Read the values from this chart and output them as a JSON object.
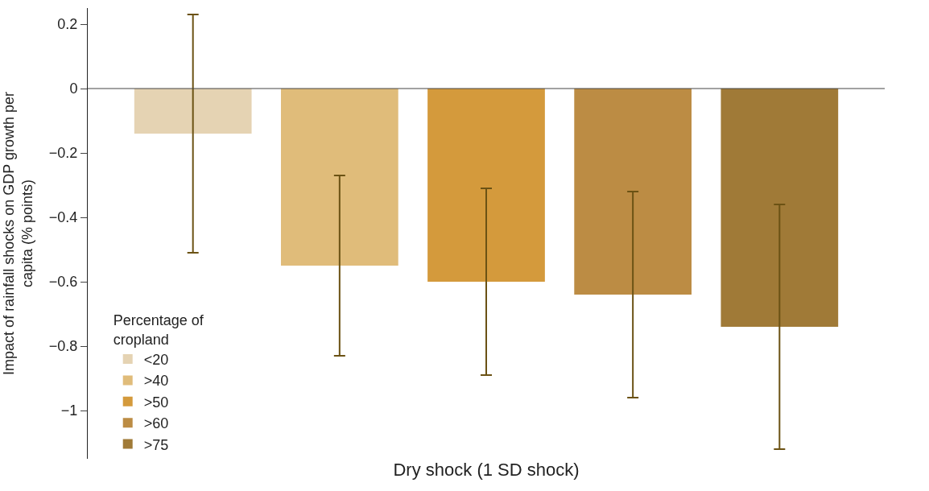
{
  "chart_data": {
    "type": "bar",
    "ylabel": "Impact of rainfall shocks on GDP growth per capita (% points)",
    "legend_title": "Percentage of cropland",
    "categories": [
      "Dry shock (1 SD shock)"
    ],
    "series": [
      {
        "name": "<20",
        "color": "#e5d3b3",
        "values": [
          -0.14
        ],
        "errors": [
          [
            -0.51,
            0.23
          ]
        ]
      },
      {
        "name": ">40",
        "color": "#e0bc7a",
        "values": [
          -0.55
        ],
        "errors": [
          [
            -0.83,
            -0.27
          ]
        ]
      },
      {
        "name": ">50",
        "color": "#d49a3c",
        "values": [
          -0.6
        ],
        "errors": [
          [
            -0.89,
            -0.31
          ]
        ]
      },
      {
        "name": ">60",
        "color": "#bc8c44",
        "values": [
          -0.64
        ],
        "errors": [
          [
            -0.96,
            -0.32
          ]
        ]
      },
      {
        "name": ">75",
        "color": "#a07a37",
        "values": [
          -0.74
        ],
        "errors": [
          [
            -1.12,
            -0.36
          ]
        ]
      }
    ],
    "ylim": [
      -1.15,
      0.25
    ],
    "yticks": [
      0.2,
      0,
      {
        "value": -0.2,
        "label": "−0.2"
      },
      {
        "value": -0.4,
        "label": "−0.4"
      },
      {
        "value": -0.6,
        "label": "−0.6"
      },
      {
        "value": -0.8,
        "label": "−0.8"
      },
      {
        "value": -1,
        "label": "−1"
      }
    ],
    "ref_lines": [
      {
        "axis": "y",
        "value": 0,
        "color": "#444444"
      }
    ],
    "legend": "bottom left"
  }
}
